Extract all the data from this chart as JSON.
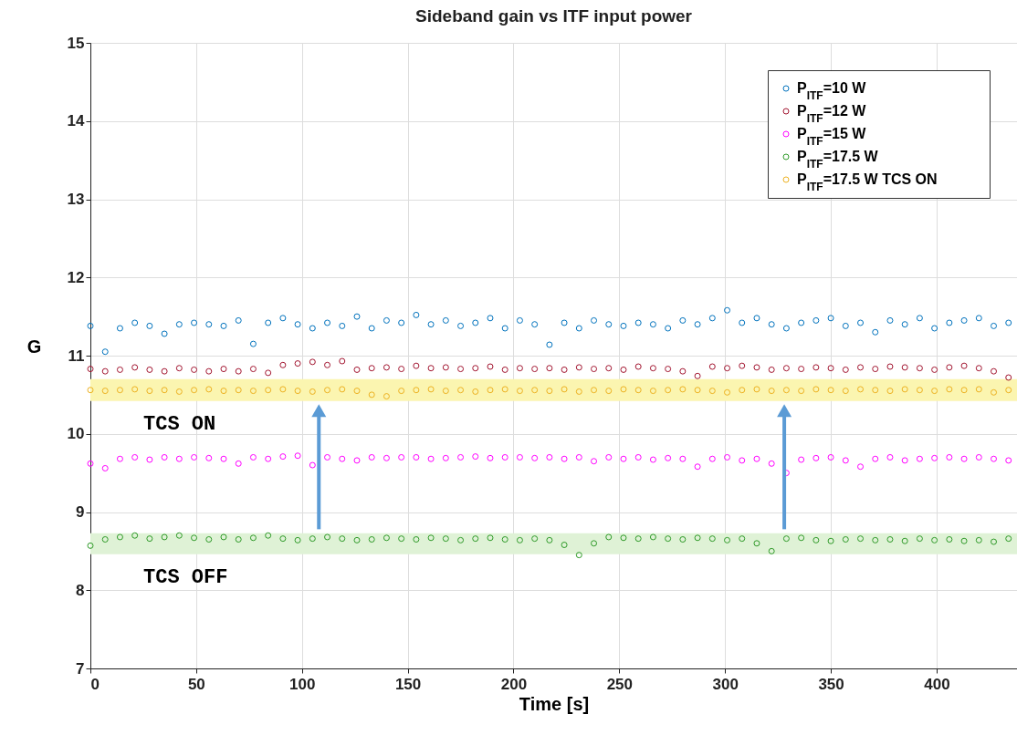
{
  "chart_data": {
    "type": "scatter",
    "title": "Sideband gain vs ITF input power",
    "xlabel": "Time [s]",
    "ylabel": "G",
    "x": [
      0,
      7,
      14,
      21,
      28,
      35,
      42,
      49,
      56,
      63,
      70,
      77,
      84,
      91,
      98,
      105,
      112,
      119,
      126,
      133,
      140,
      147,
      154,
      161,
      168,
      175,
      182,
      189,
      196,
      203,
      210,
      217,
      224,
      231,
      238,
      245,
      252,
      259,
      266,
      273,
      280,
      287,
      294,
      301,
      308,
      315,
      322,
      329,
      336,
      343,
      350,
      357,
      364,
      371,
      378,
      385,
      392,
      399,
      406,
      413,
      420,
      427,
      434
    ],
    "series": [
      {
        "name": "P$_{ITF}$=10 W",
        "color": "#0072bd",
        "values": [
          11.38,
          11.05,
          11.35,
          11.42,
          11.38,
          11.28,
          11.4,
          11.42,
          11.4,
          11.38,
          11.45,
          11.15,
          11.42,
          11.48,
          11.4,
          11.35,
          11.42,
          11.38,
          11.5,
          11.35,
          11.45,
          11.42,
          11.52,
          11.4,
          11.45,
          11.38,
          11.42,
          11.48,
          11.35,
          11.45,
          11.4,
          11.14,
          11.42,
          11.35,
          11.45,
          11.4,
          11.38,
          11.42,
          11.4,
          11.35,
          11.45,
          11.4,
          11.48,
          11.58,
          11.42,
          11.48,
          11.4,
          11.35,
          11.42,
          11.45,
          11.48,
          11.38,
          11.42,
          11.3,
          11.45,
          11.4,
          11.48,
          11.35,
          11.42,
          11.45,
          11.48,
          11.38,
          11.42
        ]
      },
      {
        "name": "P$_{ITF}$=12 W",
        "color": "#a2142f",
        "values": [
          10.83,
          10.8,
          10.82,
          10.85,
          10.82,
          10.8,
          10.84,
          10.82,
          10.8,
          10.83,
          10.8,
          10.83,
          10.78,
          10.88,
          10.9,
          10.92,
          10.88,
          10.93,
          10.82,
          10.84,
          10.85,
          10.83,
          10.87,
          10.84,
          10.85,
          10.83,
          10.84,
          10.86,
          10.82,
          10.84,
          10.83,
          10.84,
          10.82,
          10.85,
          10.83,
          10.84,
          10.82,
          10.86,
          10.84,
          10.83,
          10.8,
          10.74,
          10.86,
          10.84,
          10.87,
          10.85,
          10.82,
          10.84,
          10.83,
          10.85,
          10.84,
          10.82,
          10.85,
          10.83,
          10.86,
          10.85,
          10.84,
          10.82,
          10.85,
          10.87,
          10.84,
          10.8,
          10.72
        ]
      },
      {
        "name": "P$_{ITF}$=15 W",
        "color": "#ff00ff",
        "values": [
          9.62,
          9.56,
          9.68,
          9.7,
          9.67,
          9.7,
          9.68,
          9.7,
          9.69,
          9.68,
          9.62,
          9.7,
          9.68,
          9.71,
          9.72,
          9.6,
          9.7,
          9.68,
          9.66,
          9.7,
          9.69,
          9.7,
          9.7,
          9.68,
          9.69,
          9.7,
          9.71,
          9.69,
          9.7,
          9.7,
          9.69,
          9.7,
          9.68,
          9.7,
          9.65,
          9.7,
          9.68,
          9.7,
          9.67,
          9.69,
          9.68,
          9.58,
          9.68,
          9.7,
          9.66,
          9.68,
          9.62,
          9.5,
          9.67,
          9.69,
          9.7,
          9.66,
          9.58,
          9.68,
          9.7,
          9.66,
          9.68,
          9.69,
          9.7,
          9.68,
          9.7,
          9.68,
          9.66
        ]
      },
      {
        "name": "P$_{ITF}$=17.5 W",
        "color": "#2e9a28",
        "values": [
          8.57,
          8.65,
          8.68,
          8.7,
          8.66,
          8.68,
          8.7,
          8.67,
          8.65,
          8.68,
          8.65,
          8.67,
          8.7,
          8.66,
          8.64,
          8.66,
          8.68,
          8.66,
          8.64,
          8.65,
          8.67,
          8.66,
          8.65,
          8.67,
          8.66,
          8.64,
          8.66,
          8.67,
          8.65,
          8.64,
          8.66,
          8.64,
          8.58,
          8.45,
          8.6,
          8.68,
          8.67,
          8.66,
          8.68,
          8.66,
          8.65,
          8.67,
          8.66,
          8.64,
          8.66,
          8.6,
          8.5,
          8.66,
          8.67,
          8.64,
          8.63,
          8.65,
          8.66,
          8.64,
          8.65,
          8.63,
          8.66,
          8.64,
          8.65,
          8.63,
          8.64,
          8.62,
          8.66
        ]
      },
      {
        "name": "P$_{ITF}$=17.5 W TCS ON",
        "color": "#edb120",
        "values": [
          10.56,
          10.55,
          10.56,
          10.57,
          10.55,
          10.56,
          10.54,
          10.56,
          10.57,
          10.55,
          10.56,
          10.55,
          10.56,
          10.57,
          10.55,
          10.54,
          10.56,
          10.57,
          10.55,
          10.5,
          10.48,
          10.55,
          10.56,
          10.57,
          10.55,
          10.56,
          10.54,
          10.56,
          10.57,
          10.55,
          10.56,
          10.55,
          10.57,
          10.54,
          10.56,
          10.55,
          10.57,
          10.56,
          10.55,
          10.56,
          10.57,
          10.56,
          10.55,
          10.53,
          10.56,
          10.57,
          10.55,
          10.56,
          10.55,
          10.57,
          10.56,
          10.55,
          10.57,
          10.56,
          10.55,
          10.57,
          10.56,
          10.55,
          10.57,
          10.56,
          10.57,
          10.53,
          10.56
        ]
      }
    ],
    "xlim": [
      0,
      438
    ],
    "ylim": [
      7,
      15
    ],
    "xticks": [
      0,
      50,
      100,
      150,
      200,
      250,
      300,
      350,
      400
    ],
    "yticks": [
      7,
      8,
      9,
      10,
      11,
      12,
      13,
      14,
      15
    ],
    "grid": true,
    "legend": "top right",
    "marker": "circle",
    "bands": [
      {
        "axis": "y",
        "from": 10.42,
        "to": 10.7,
        "label": "TCS ON",
        "color": "#fbf5b0"
      },
      {
        "axis": "y",
        "from": 8.46,
        "to": 8.73,
        "label": "TCS OFF",
        "color": "#dff2d6"
      }
    ]
  }
}
